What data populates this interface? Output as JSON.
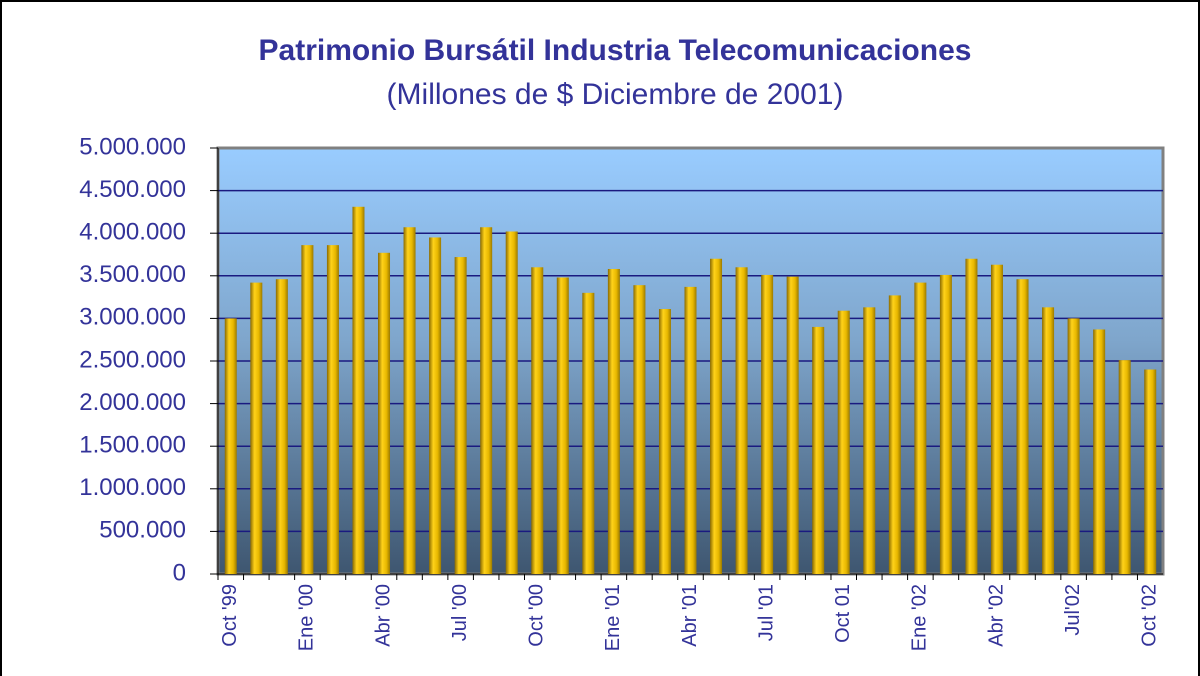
{
  "chart_data": {
    "type": "bar",
    "title": "Patrimonio Bursátil Industria Telecomunicaciones",
    "subtitle": "(Millones de $ Diciembre de 2001)",
    "categories": [
      "Oct '99",
      null,
      null,
      "Ene '00",
      null,
      null,
      "Abr '00",
      null,
      null,
      "Jul '00",
      null,
      null,
      "Oct '00",
      null,
      null,
      "Ene '01",
      null,
      null,
      "Abr '01",
      null,
      null,
      "Jul '01",
      null,
      null,
      "Oct 01",
      null,
      null,
      "Ene '02",
      null,
      null,
      "Abr '02",
      null,
      null,
      "Jul'02",
      null,
      null,
      "Oct '02"
    ],
    "values": [
      3000000,
      3420000,
      3460000,
      3860000,
      3860000,
      4310000,
      3770000,
      4070000,
      3950000,
      3720000,
      4070000,
      4020000,
      3600000,
      3480000,
      3300000,
      3580000,
      3390000,
      3110000,
      3370000,
      3700000,
      3600000,
      3510000,
      3490000,
      2900000,
      3090000,
      3130000,
      3270000,
      3420000,
      3510000,
      3700000,
      3630000,
      3460000,
      3130000,
      3000000,
      2870000,
      2510000,
      2400000
    ],
    "color": "#e8b800",
    "ylim": [
      0,
      5000000
    ],
    "yticks": [
      0,
      {
        "value": 500000,
        "label": "500.000"
      },
      {
        "value": 1000000,
        "label": "1.000.000"
      },
      {
        "value": 1500000,
        "label": "1.500.000"
      },
      {
        "value": 2000000,
        "label": "2.000.000"
      },
      {
        "value": 2500000,
        "label": "2.500.000"
      },
      {
        "value": 3000000,
        "label": "3.000.000"
      },
      {
        "value": 3500000,
        "label": "3.500.000"
      },
      {
        "value": 4000000,
        "label": "4.000.000"
      },
      {
        "value": 4500000,
        "label": "4.500.000"
      },
      {
        "value": 5000000,
        "label": "5.000.000"
      }
    ],
    "grid": true
  }
}
